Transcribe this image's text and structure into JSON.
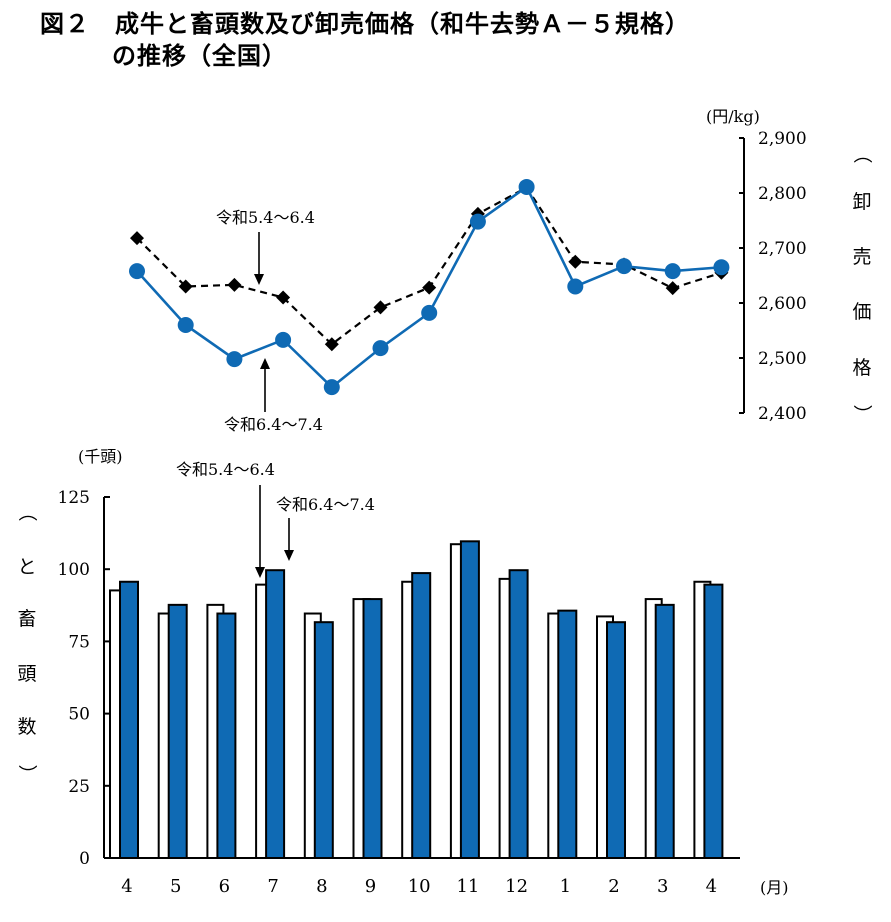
{
  "title": {
    "line1": "図２　成牛と畜頭数及び卸売価格（和牛去勢Ａ－５規格）",
    "line2": "の推移（全国）"
  },
  "colors": {
    "blue": "#0f6ab4",
    "black": "#000000",
    "white": "#ffffff"
  },
  "chart_data": [
    {
      "type": "line",
      "y_axis": {
        "unit": "(円/kg)",
        "label_chars": [
          "（",
          "卸",
          "売",
          "価",
          "格",
          "）"
        ],
        "ylim": [
          2400,
          2900
        ],
        "ticks": [
          2400,
          2500,
          2600,
          2700,
          2800,
          2900
        ],
        "tick_labels": [
          "2,400",
          "2,500",
          "2,600",
          "2,700",
          "2,800",
          "2,900"
        ]
      },
      "categories": [
        "4",
        "5",
        "6",
        "7",
        "8",
        "9",
        "10",
        "11",
        "12",
        "1",
        "2",
        "3",
        "4"
      ],
      "series": [
        {
          "name": "令和5.4～6.4",
          "style": "dashed-diamond",
          "color": "#000000",
          "values": [
            2718,
            2630,
            2633,
            2610,
            2525,
            2592,
            2628,
            2762,
            2810,
            2675,
            2670,
            2627,
            2655
          ]
        },
        {
          "name": "令和6.4～7.4",
          "style": "solid-circle",
          "color": "#0f6ab4",
          "values": [
            2658,
            2560,
            2498,
            2533,
            2447,
            2518,
            2582,
            2748,
            2811,
            2630,
            2667,
            2658,
            2665
          ]
        }
      ],
      "annotations": [
        "令和5.4～6.4",
        "令和6.4～7.4"
      ]
    },
    {
      "type": "bar",
      "y_axis": {
        "unit": "(千頭)",
        "label_chars": [
          "（",
          "と",
          "畜",
          "頭",
          "数",
          "）"
        ],
        "ylim": [
          0,
          125
        ],
        "ticks": [
          0,
          25,
          50,
          75,
          100,
          125
        ]
      },
      "x_axis": {
        "unit": "(月)"
      },
      "categories": [
        "4",
        "5",
        "6",
        "7",
        "8",
        "9",
        "10",
        "11",
        "12",
        "1",
        "2",
        "3",
        "4"
      ],
      "series": [
        {
          "name": "令和5.4～6.4",
          "style": "white-bar",
          "color": "#ffffff",
          "values": [
            93,
            85,
            88,
            95,
            85,
            90,
            96,
            109,
            97,
            85,
            84,
            90,
            96
          ]
        },
        {
          "name": "令和6.4～7.4",
          "style": "blue-bar",
          "color": "#0f6ab4",
          "values": [
            96,
            88,
            85,
            100,
            82,
            90,
            99,
            110,
            100,
            86,
            82,
            88,
            95
          ]
        }
      ],
      "annotations": [
        "令和5.4～6.4",
        "令和6.4～7.4"
      ]
    }
  ]
}
